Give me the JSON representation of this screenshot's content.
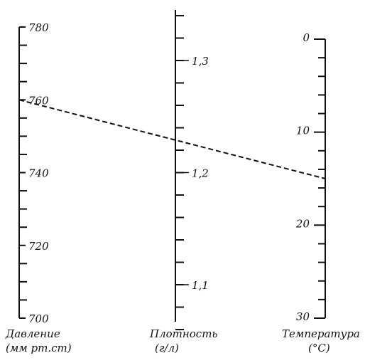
{
  "axes": [
    {
      "id": "pressure",
      "title_line1": "Давление",
      "title_line2": "(мм рт.ст)",
      "range": [
        700,
        780
      ],
      "major_step": 20,
      "minor_step": 5,
      "labels": [
        "700",
        "720",
        "740",
        "760",
        "780"
      ]
    },
    {
      "id": "density",
      "title_line1": "Плотность",
      "title_line2": "(г/л)",
      "range": [
        1.05,
        1.37
      ],
      "major_values": [
        1.1,
        1.2,
        1.3
      ],
      "minor_step": 0.02,
      "labels": [
        "1,1",
        "1,2",
        "1,3"
      ]
    },
    {
      "id": "temperature",
      "title_line1": "Температура",
      "title_line2": "(°C)",
      "range": [
        0,
        30
      ],
      "major_step": 10,
      "minor_step": 2,
      "labels": [
        "0",
        "10",
        "20",
        "30"
      ]
    }
  ],
  "example_line": {
    "pressure": 760,
    "density": 1.21,
    "temperature": 15,
    "style": "dashed",
    "color": "#111111"
  },
  "colors": {
    "ink": "#111111",
    "background": "#ffffff"
  }
}
